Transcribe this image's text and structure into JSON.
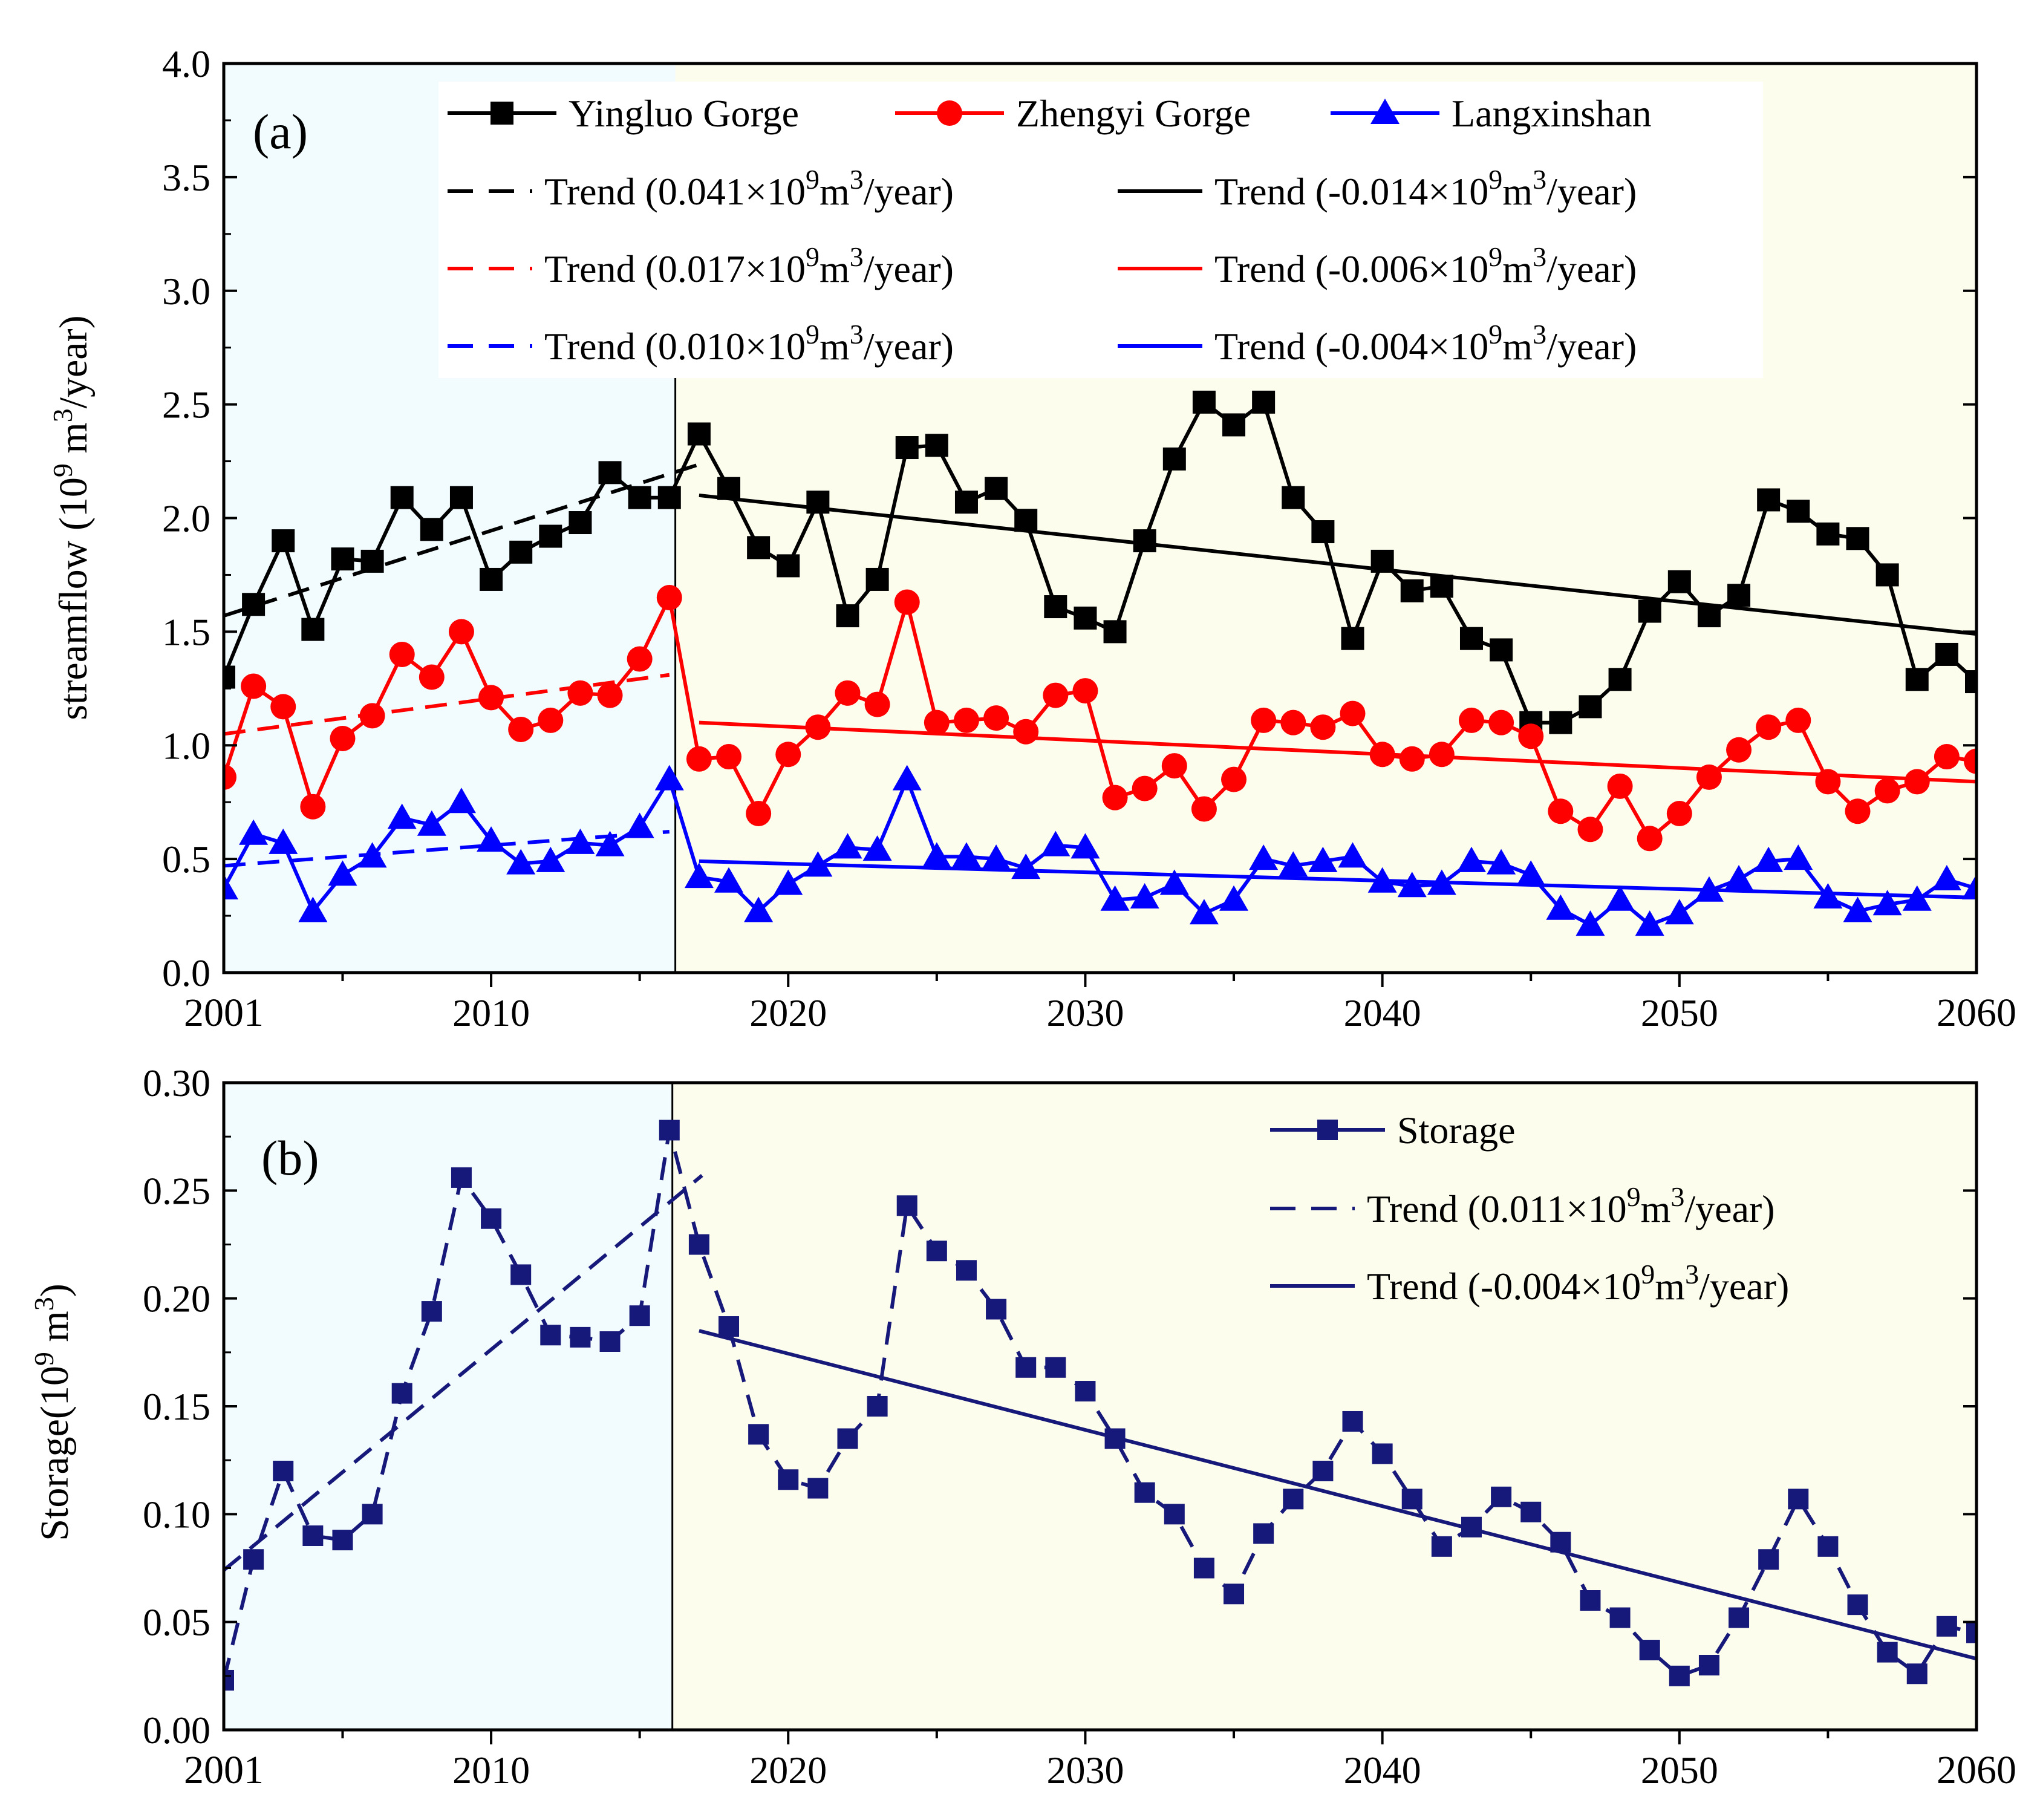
{
  "chart_data": [
    {
      "type": "line",
      "panel_label": "(a)",
      "ylabel": "streamflow (10",
      "ylabel_sup": "9",
      "ylabel_mid": " m",
      "ylabel_sup2": "3",
      "ylabel_tail": "/year)",
      "xlim": [
        2001,
        2060
      ],
      "ylim": [
        0,
        4.0
      ],
      "x_ticks": [
        2001,
        2010,
        2020,
        2030,
        2040,
        2050,
        2060
      ],
      "x_tick_labels": [
        "2001",
        "2010",
        "2020",
        "2030",
        "2040",
        "2050",
        "2060"
      ],
      "y_ticks": [
        0,
        0.5,
        1.0,
        1.5,
        2.0,
        2.5,
        3.0,
        3.5,
        4.0
      ],
      "y_tick_labels": [
        "0.0",
        "0.5",
        "1.0",
        "1.5",
        "2.0",
        "2.5",
        "3.0",
        "3.5",
        "4.0"
      ],
      "divider_x": 2016.2,
      "background_periods": [
        {
          "from": 2001,
          "to": 2016.2,
          "color": "#f2fbfd"
        },
        {
          "from": 2016.2,
          "to": 2060,
          "color": "#fdfdee"
        }
      ],
      "x": [
        2001,
        2002,
        2003,
        2004,
        2005,
        2006,
        2007,
        2008,
        2009,
        2010,
        2011,
        2012,
        2013,
        2014,
        2015,
        2016,
        2017,
        2018,
        2019,
        2020,
        2021,
        2022,
        2023,
        2024,
        2025,
        2026,
        2027,
        2028,
        2029,
        2030,
        2031,
        2032,
        2033,
        2034,
        2035,
        2036,
        2037,
        2038,
        2039,
        2040,
        2041,
        2042,
        2043,
        2044,
        2045,
        2046,
        2047,
        2048,
        2049,
        2050,
        2051,
        2052,
        2053,
        2054,
        2055,
        2056,
        2057,
        2058,
        2059,
        2060
      ],
      "series": [
        {
          "name": "Yingluo Gorge",
          "color": "#000000",
          "marker": "square",
          "values": [
            1.3,
            1.62,
            1.9,
            1.51,
            1.82,
            1.81,
            2.09,
            1.95,
            2.09,
            1.73,
            1.85,
            1.92,
            1.98,
            2.2,
            2.09,
            2.09,
            2.37,
            2.13,
            1.87,
            1.79,
            2.07,
            1.57,
            1.73,
            2.31,
            2.32,
            2.07,
            2.13,
            1.99,
            1.61,
            1.56,
            1.5,
            1.9,
            2.26,
            2.51,
            2.41,
            2.51,
            2.09,
            1.94,
            1.47,
            1.81,
            1.68,
            1.7,
            1.47,
            1.42,
            1.1,
            1.1,
            1.17,
            1.29,
            1.59,
            1.72,
            1.57,
            1.66,
            2.08,
            2.03,
            1.93,
            1.91,
            1.75,
            1.29,
            1.4,
            1.28
          ]
        },
        {
          "name": "Zhengyi Gorge",
          "color": "#ff0000",
          "marker": "circle",
          "values": [
            0.86,
            1.26,
            1.17,
            0.73,
            1.03,
            1.13,
            1.4,
            1.3,
            1.5,
            1.21,
            1.07,
            1.11,
            1.23,
            1.22,
            1.38,
            1.65,
            0.94,
            0.95,
            0.7,
            0.96,
            1.08,
            1.23,
            1.18,
            1.63,
            1.1,
            1.11,
            1.12,
            1.06,
            1.22,
            1.24,
            0.77,
            0.81,
            0.91,
            0.72,
            0.85,
            1.11,
            1.1,
            1.08,
            1.14,
            0.96,
            0.94,
            0.96,
            1.11,
            1.1,
            1.04,
            0.71,
            0.63,
            0.82,
            0.59,
            0.7,
            0.86,
            0.98,
            1.08,
            1.11,
            0.84,
            0.71,
            0.8,
            0.84,
            0.95,
            0.93
          ]
        },
        {
          "name": "Langxinshan",
          "color": "#0000ff",
          "marker": "triangle",
          "values": [
            0.37,
            0.61,
            0.57,
            0.27,
            0.43,
            0.51,
            0.68,
            0.65,
            0.75,
            0.58,
            0.48,
            0.49,
            0.57,
            0.56,
            0.64,
            0.85,
            0.42,
            0.4,
            0.27,
            0.39,
            0.47,
            0.55,
            0.54,
            0.85,
            0.51,
            0.51,
            0.5,
            0.46,
            0.56,
            0.55,
            0.32,
            0.33,
            0.39,
            0.26,
            0.32,
            0.5,
            0.47,
            0.49,
            0.51,
            0.4,
            0.38,
            0.39,
            0.49,
            0.48,
            0.43,
            0.28,
            0.21,
            0.32,
            0.21,
            0.26,
            0.36,
            0.41,
            0.49,
            0.5,
            0.33,
            0.27,
            0.3,
            0.32,
            0.41,
            0.37
          ]
        }
      ],
      "trend_lines": [
        {
          "label_pre": "Trend (0.041×10",
          "sup1": "9",
          "label_mid": "m",
          "sup2": "3",
          "label_post": "/year)",
          "color": "#000000",
          "style": "dashed",
          "x": [
            2001,
            2017.1
          ],
          "y": [
            1.57,
            2.24
          ]
        },
        {
          "label_pre": "Trend (-0.014×10",
          "sup1": "9",
          "label_mid": "m",
          "sup2": "3",
          "label_post": "/year)",
          "color": "#000000",
          "style": "solid",
          "x": [
            2017,
            2060
          ],
          "y": [
            2.1,
            1.49
          ]
        },
        {
          "label_pre": "Trend (0.017×10",
          "sup1": "9",
          "label_mid": "m",
          "sup2": "3",
          "label_post": "/year)",
          "color": "#ff0000",
          "style": "dashed",
          "x": [
            2001,
            2016
          ],
          "y": [
            1.05,
            1.31
          ]
        },
        {
          "label_pre": "Trend (-0.006×10",
          "sup1": "9",
          "label_mid": "m",
          "sup2": "3",
          "label_post": "/year)",
          "color": "#ff0000",
          "style": "solid",
          "x": [
            2017,
            2060
          ],
          "y": [
            1.1,
            0.84
          ]
        },
        {
          "label_pre": "Trend (0.010×10",
          "sup1": "9",
          "label_mid": "m",
          "sup2": "3",
          "label_post": "/year)",
          "color": "#0000ff",
          "style": "dashed",
          "x": [
            2001,
            2016
          ],
          "y": [
            0.47,
            0.62
          ]
        },
        {
          "label_pre": "Trend (-0.004×10",
          "sup1": "9",
          "label_mid": "m",
          "sup2": "3",
          "label_post": "/year)",
          "color": "#0000ff",
          "style": "solid",
          "x": [
            2017,
            2060
          ],
          "y": [
            0.49,
            0.33
          ]
        }
      ],
      "legend_position": "top"
    },
    {
      "type": "line",
      "panel_label": "(b)",
      "ylabel": "Storage(10",
      "ylabel_sup": "9",
      "ylabel_mid": " m",
      "ylabel_sup2": "3",
      "ylabel_tail": ")",
      "xlim": [
        2001,
        2060
      ],
      "ylim": [
        0,
        0.3
      ],
      "x_ticks": [
        2001,
        2010,
        2020,
        2030,
        2040,
        2050,
        2060
      ],
      "x_tick_labels": [
        "2001",
        "2010",
        "2020",
        "2030",
        "2040",
        "2050",
        "2060"
      ],
      "y_ticks": [
        0,
        0.05,
        0.1,
        0.15,
        0.2,
        0.25,
        0.3
      ],
      "y_tick_labels": [
        "0.00",
        "0.05",
        "0.10",
        "0.15",
        "0.20",
        "0.25",
        "0.30"
      ],
      "divider_x": 2016.1,
      "background_periods": [
        {
          "from": 2001,
          "to": 2016.1,
          "color": "#f2fbfd"
        },
        {
          "from": 2016.1,
          "to": 2060,
          "color": "#fdfdee"
        }
      ],
      "x": [
        2001,
        2002,
        2003,
        2004,
        2005,
        2006,
        2007,
        2008,
        2009,
        2010,
        2011,
        2012,
        2013,
        2014,
        2015,
        2016,
        2017,
        2018,
        2019,
        2020,
        2021,
        2022,
        2023,
        2024,
        2025,
        2026,
        2027,
        2028,
        2029,
        2030,
        2031,
        2032,
        2033,
        2034,
        2035,
        2036,
        2037,
        2038,
        2039,
        2040,
        2041,
        2042,
        2043,
        2044,
        2045,
        2046,
        2047,
        2048,
        2049,
        2050,
        2051,
        2052,
        2053,
        2054,
        2055,
        2056,
        2057,
        2058,
        2059,
        2060
      ],
      "series": [
        {
          "name": "Storage",
          "color": "#16197a",
          "marker": "square",
          "style": "dashed",
          "values": [
            0.023,
            0.079,
            0.12,
            0.09,
            0.088,
            0.1,
            0.156,
            0.194,
            0.256,
            0.237,
            0.211,
            0.183,
            0.182,
            0.18,
            0.192,
            0.278,
            0.225,
            0.187,
            0.137,
            0.116,
            0.112,
            0.135,
            0.15,
            0.243,
            0.222,
            0.213,
            0.195,
            0.168,
            0.168,
            0.157,
            0.135,
            0.11,
            0.1,
            0.075,
            0.063,
            0.091,
            0.107,
            0.12,
            0.143,
            0.128,
            0.107,
            0.085,
            0.094,
            0.108,
            0.101,
            0.087,
            0.06,
            0.052,
            0.037,
            0.025,
            0.03,
            0.052,
            0.079,
            0.107,
            0.085,
            0.058,
            0.036,
            0.026,
            0.048,
            0.045
          ]
        }
      ],
      "trend_lines": [
        {
          "label_pre": "Trend (0.011×10",
          "sup1": "9",
          "label_mid": "m",
          "sup2": "3",
          "label_post": "/year)",
          "color": "#16197a",
          "style": "dashed",
          "x": [
            2001,
            2017.1
          ],
          "y": [
            0.074,
            0.257
          ]
        },
        {
          "label_pre": "Trend (-0.004×10",
          "sup1": "9",
          "label_mid": "m",
          "sup2": "3",
          "label_post": "/year)",
          "color": "#16197a",
          "style": "solid",
          "x": [
            2017,
            2060
          ],
          "y": [
            0.185,
            0.033
          ]
        }
      ],
      "legend_position": "top-right"
    }
  ]
}
